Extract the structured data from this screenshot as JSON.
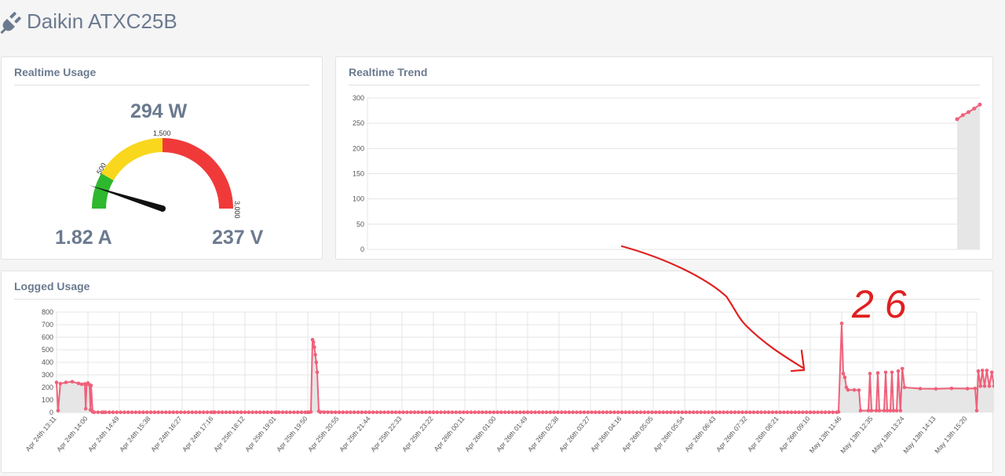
{
  "page": {
    "title": "Daikin ATXC25B",
    "icon": "plug-icon"
  },
  "realtime_usage": {
    "title": "Realtime Usage",
    "power": "294 W",
    "current": "1.82 A",
    "voltage": "237 V",
    "gauge": {
      "min": 0,
      "max": 3000,
      "value": 294,
      "labels": [
        "500",
        "1,500",
        "3,000"
      ],
      "bands": [
        {
          "from": 0,
          "to": 500,
          "color": "#2eb82e"
        },
        {
          "from": 500,
          "to": 1500,
          "color": "#f9d71c"
        },
        {
          "from": 1500,
          "to": 3000,
          "color": "#f03a3a"
        }
      ]
    }
  },
  "realtime_trend": {
    "title": "Realtime Trend"
  },
  "logged_usage": {
    "title": "Logged Usage"
  },
  "annotation": {
    "text": "2 6",
    "color": "#e02020"
  },
  "chart_data": [
    {
      "type": "area",
      "title": "",
      "ylim": [
        0,
        300
      ],
      "yticks": [
        0,
        50,
        100,
        150,
        200,
        250,
        300
      ],
      "x": [
        0,
        1,
        2,
        3,
        4
      ],
      "values": [
        258,
        266,
        272,
        279,
        287
      ],
      "x_window": 34,
      "color": "#f0607a",
      "fill": "#e6e6e6",
      "grid": true
    },
    {
      "type": "area",
      "title": "",
      "ylim": [
        0,
        800
      ],
      "yticks": [
        0,
        100,
        200,
        300,
        400,
        500,
        600,
        700,
        800
      ],
      "categories": [
        "Apr 24th 13:11",
        "Apr 24th 14:00",
        "Apr 24th 14:49",
        "Apr 24th 15:38",
        "Apr 24th 16:27",
        "Apr 24th 17:16",
        "Apr 25th 18:12",
        "Apr 25th 19:01",
        "Apr 25th 19:50",
        "Apr 25th 20:55",
        "Apr 25th 21:44",
        "Apr 25th 22:33",
        "Apr 25th 23:22",
        "Apr 26th 00:11",
        "Apr 26th 01:00",
        "Apr 26th 01:49",
        "Apr 26th 02:38",
        "Apr 26th 03:27",
        "Apr 26th 04:16",
        "Apr 26th 05:05",
        "Apr 26th 05:54",
        "Apr 26th 06:43",
        "Apr 26th 07:32",
        "Apr 26th 08:21",
        "Apr 26th 09:10",
        "May 13th 11:46",
        "May 13th 12:35",
        "May 13th 13:24",
        "May 13th 14:13",
        "May 13th 15:20"
      ],
      "points": [
        [
          0,
          240
        ],
        [
          0.05,
          15
        ],
        [
          0.12,
          230
        ],
        [
          0.3,
          240
        ],
        [
          0.5,
          245
        ],
        [
          0.7,
          232
        ],
        [
          0.8,
          225
        ],
        [
          0.9,
          228
        ],
        [
          0.93,
          30
        ],
        [
          0.96,
          225
        ],
        [
          1.0,
          235
        ],
        [
          1.05,
          220
        ],
        [
          1.08,
          20
        ],
        [
          1.1,
          215
        ],
        [
          1.15,
          5
        ],
        [
          1.5,
          2
        ],
        [
          3,
          2
        ],
        [
          5,
          2
        ],
        [
          7,
          2
        ],
        [
          8.0,
          2
        ],
        [
          8.1,
          5
        ],
        [
          8.15,
          580
        ],
        [
          8.18,
          560
        ],
        [
          8.21,
          520
        ],
        [
          8.24,
          460
        ],
        [
          8.27,
          400
        ],
        [
          8.3,
          320
        ],
        [
          8.35,
          10
        ],
        [
          9,
          2
        ],
        [
          12,
          2
        ],
        [
          15,
          2
        ],
        [
          18,
          2
        ],
        [
          21,
          2
        ],
        [
          24,
          2
        ],
        [
          24.9,
          5
        ],
        [
          25.0,
          710
        ],
        [
          25.05,
          310
        ],
        [
          25.1,
          280
        ],
        [
          25.15,
          200
        ],
        [
          25.2,
          180
        ],
        [
          25.4,
          180
        ],
        [
          25.55,
          178
        ],
        [
          25.6,
          15
        ],
        [
          25.85,
          15
        ],
        [
          25.9,
          310
        ],
        [
          25.95,
          15
        ],
        [
          26.1,
          15
        ],
        [
          26.15,
          315
        ],
        [
          26.2,
          15
        ],
        [
          26.35,
          15
        ],
        [
          26.4,
          320
        ],
        [
          26.45,
          15
        ],
        [
          26.55,
          15
        ],
        [
          26.6,
          320
        ],
        [
          26.65,
          15
        ],
        [
          26.75,
          15
        ],
        [
          26.8,
          330
        ],
        [
          26.87,
          15
        ],
        [
          26.93,
          350
        ],
        [
          27.0,
          200
        ],
        [
          27.5,
          190
        ],
        [
          28.0,
          188
        ],
        [
          28.5,
          192
        ],
        [
          29.0,
          190
        ],
        [
          29.25,
          192
        ],
        [
          29.3,
          15
        ],
        [
          29.35,
          330
        ],
        [
          29.42,
          210
        ],
        [
          29.48,
          335
        ],
        [
          29.55,
          210
        ],
        [
          29.62,
          335
        ],
        [
          29.7,
          210
        ],
        [
          29.78,
          320
        ],
        [
          29.85,
          210
        ],
        [
          29.92,
          300
        ],
        [
          30.0,
          210
        ],
        [
          30.1,
          215
        ],
        [
          30.2,
          210
        ],
        [
          30.3,
          20
        ],
        [
          30.38,
          345
        ],
        [
          30.46,
          215
        ],
        [
          30.55,
          20
        ],
        [
          30.65,
          10
        ]
      ],
      "color": "#f0607a",
      "fill": "#e6e6e6",
      "grid": true
    }
  ]
}
